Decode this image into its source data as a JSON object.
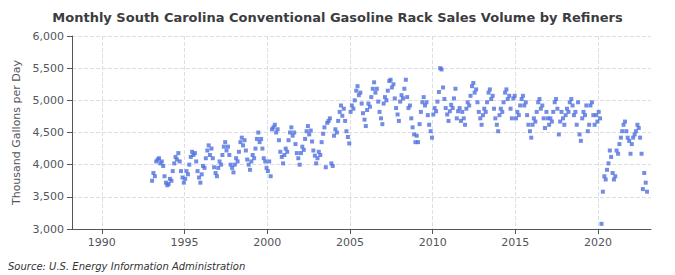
{
  "chart_data": {
    "type": "scatter",
    "title": "Monthly South Carolina Conventional Gasoline Rack Sales Volume by Refiners",
    "ylabel": "Thousand Gallons per Day",
    "annotations": [
      "Source: U.S. Energy Information Administration"
    ],
    "marker": "square",
    "grid": true,
    "xlim": [
      1988.2,
      2023.2
    ],
    "xticks": [
      1990,
      1995,
      2000,
      2005,
      2010,
      2015,
      2020
    ],
    "ylim": [
      3000,
      6000
    ],
    "yticks": [
      {
        "value": 3000,
        "label": "3,000"
      },
      {
        "value": 3500,
        "label": "3,500"
      },
      {
        "value": 4000,
        "label": "4,000"
      },
      {
        "value": 4500,
        "label": "4,500"
      },
      {
        "value": 5000,
        "label": "5,000"
      },
      {
        "value": 5500,
        "label": "5,500"
      },
      {
        "value": 6000,
        "label": "6,000"
      }
    ],
    "x": [
      1993.04,
      1993.12,
      1993.21,
      1993.29,
      1993.38,
      1993.46,
      1993.54,
      1993.63,
      1993.71,
      1993.79,
      1993.88,
      1993.96,
      1994.04,
      1994.12,
      1994.21,
      1994.29,
      1994.38,
      1994.46,
      1994.54,
      1994.63,
      1994.71,
      1994.79,
      1994.88,
      1994.96,
      1995.04,
      1995.12,
      1995.21,
      1995.29,
      1995.38,
      1995.46,
      1995.54,
      1995.63,
      1995.71,
      1995.79,
      1995.88,
      1995.96,
      1996.04,
      1996.12,
      1996.21,
      1996.29,
      1996.38,
      1996.46,
      1996.54,
      1996.63,
      1996.71,
      1996.79,
      1996.88,
      1996.96,
      1997.04,
      1997.12,
      1997.21,
      1997.29,
      1997.38,
      1997.46,
      1997.54,
      1997.63,
      1997.71,
      1997.79,
      1997.88,
      1997.96,
      1998.04,
      1998.12,
      1998.21,
      1998.29,
      1998.38,
      1998.46,
      1998.54,
      1998.63,
      1998.71,
      1998.79,
      1998.88,
      1998.96,
      1999.04,
      1999.12,
      1999.21,
      1999.29,
      1999.38,
      1999.46,
      1999.54,
      1999.63,
      1999.71,
      1999.79,
      1999.88,
      1999.96,
      2000.04,
      2000.12,
      2000.21,
      2000.29,
      2000.38,
      2000.46,
      2000.54,
      2000.63,
      2000.71,
      2000.79,
      2000.88,
      2000.96,
      2001.04,
      2001.12,
      2001.21,
      2001.29,
      2001.38,
      2001.46,
      2001.54,
      2001.63,
      2001.71,
      2001.79,
      2001.88,
      2001.96,
      2002.04,
      2002.12,
      2002.21,
      2002.29,
      2002.38,
      2002.46,
      2002.54,
      2002.63,
      2002.71,
      2002.79,
      2002.88,
      2002.96,
      2003.04,
      2003.12,
      2003.21,
      2003.29,
      2003.38,
      2003.46,
      2003.54,
      2003.63,
      2003.71,
      2003.79,
      2003.88,
      2003.96,
      2004.04,
      2004.12,
      2004.21,
      2004.29,
      2004.38,
      2004.46,
      2004.54,
      2004.63,
      2004.71,
      2004.79,
      2004.88,
      2004.96,
      2005.04,
      2005.12,
      2005.21,
      2005.29,
      2005.38,
      2005.46,
      2005.54,
      2005.63,
      2005.71,
      2005.79,
      2005.88,
      2005.96,
      2006.04,
      2006.12,
      2006.21,
      2006.29,
      2006.38,
      2006.46,
      2006.54,
      2006.63,
      2006.71,
      2006.79,
      2006.88,
      2006.96,
      2007.04,
      2007.12,
      2007.21,
      2007.29,
      2007.38,
      2007.46,
      2007.54,
      2007.63,
      2007.71,
      2007.79,
      2007.88,
      2007.96,
      2008.04,
      2008.12,
      2008.21,
      2008.29,
      2008.38,
      2008.46,
      2008.54,
      2008.63,
      2008.71,
      2008.79,
      2008.88,
      2008.96,
      2009.04,
      2009.12,
      2009.21,
      2009.29,
      2009.38,
      2009.46,
      2009.54,
      2009.63,
      2009.71,
      2009.79,
      2009.88,
      2009.96,
      2010.04,
      2010.12,
      2010.21,
      2010.29,
      2010.38,
      2010.46,
      2010.54,
      2010.63,
      2010.71,
      2010.79,
      2010.88,
      2010.96,
      2011.04,
      2011.12,
      2011.21,
      2011.29,
      2011.38,
      2011.46,
      2011.54,
      2011.63,
      2011.71,
      2011.79,
      2011.88,
      2011.96,
      2012.04,
      2012.12,
      2012.21,
      2012.29,
      2012.38,
      2012.46,
      2012.54,
      2012.63,
      2012.71,
      2012.79,
      2012.88,
      2012.96,
      2013.04,
      2013.12,
      2013.21,
      2013.29,
      2013.38,
      2013.46,
      2013.54,
      2013.63,
      2013.71,
      2013.79,
      2013.88,
      2013.96,
      2014.04,
      2014.12,
      2014.21,
      2014.29,
      2014.38,
      2014.46,
      2014.54,
      2014.63,
      2014.71,
      2014.79,
      2014.88,
      2014.96,
      2015.04,
      2015.12,
      2015.21,
      2015.29,
      2015.38,
      2015.46,
      2015.54,
      2015.63,
      2015.71,
      2015.79,
      2015.88,
      2015.96,
      2016.04,
      2016.12,
      2016.21,
      2016.29,
      2016.38,
      2016.46,
      2016.54,
      2016.63,
      2016.71,
      2016.79,
      2016.88,
      2016.96,
      2017.04,
      2017.12,
      2017.21,
      2017.29,
      2017.38,
      2017.46,
      2017.54,
      2017.63,
      2017.71,
      2017.79,
      2017.88,
      2017.96,
      2018.04,
      2018.12,
      2018.21,
      2018.29,
      2018.38,
      2018.46,
      2018.54,
      2018.63,
      2018.71,
      2018.79,
      2018.88,
      2018.96,
      2019.04,
      2019.12,
      2019.21,
      2019.29,
      2019.38,
      2019.46,
      2019.54,
      2019.63,
      2019.71,
      2019.79,
      2019.88,
      2019.96,
      2020.04,
      2020.12,
      2020.21,
      2020.29,
      2020.38,
      2020.46,
      2020.54,
      2020.63,
      2020.71,
      2020.79,
      2020.88,
      2020.96,
      2021.04,
      2021.12,
      2021.21,
      2021.29,
      2021.38,
      2021.46,
      2021.54,
      2021.63,
      2021.71,
      2021.79,
      2021.88,
      2021.96,
      2022.04,
      2022.12,
      2022.21,
      2022.29,
      2022.38,
      2022.46,
      2022.54,
      2022.63,
      2022.71,
      2022.79,
      2022.88,
      2022.96
    ],
    "values": [
      3750,
      3870,
      3820,
      4050,
      4080,
      4100,
      4020,
      4050,
      3980,
      3820,
      3720,
      3680,
      3700,
      3780,
      3750,
      3900,
      4020,
      4120,
      4080,
      4180,
      4050,
      3900,
      3800,
      3720,
      3780,
      3900,
      3850,
      4000,
      4120,
      4200,
      4150,
      4180,
      4050,
      3900,
      3800,
      3720,
      3850,
      3980,
      3950,
      4100,
      4220,
      4300,
      4150,
      4250,
      4100,
      3960,
      3870,
      3820,
      3950,
      4050,
      4000,
      4150,
      4280,
      4350,
      4220,
      4280,
      4150,
      4000,
      3950,
      3880,
      4000,
      4100,
      4050,
      4200,
      4350,
      4420,
      4300,
      4380,
      4220,
      4080,
      4000,
      3920,
      4050,
      4150,
      4100,
      4250,
      4400,
      4500,
      4350,
      4400,
      4250,
      4100,
      4050,
      3950,
      3900,
      4050,
      3820,
      4550,
      4580,
      4620,
      4500,
      4550,
      4380,
      4200,
      4120,
      4020,
      4150,
      4250,
      4200,
      4380,
      4500,
      4580,
      4450,
      4500,
      4320,
      4180,
      4100,
      4000,
      4180,
      4280,
      4230,
      4400,
      4520,
      4600,
      4470,
      4530,
      4360,
      4220,
      4140,
      4020,
      4100,
      4200,
      4150,
      4350,
      4480,
      4580,
      3960,
      4650,
      4680,
      4720,
      4020,
      3980,
      4450,
      4550,
      4500,
      4680,
      4820,
      4920,
      4760,
      4870,
      4680,
      4520,
      4430,
      4330,
      4820,
      4920,
      4870,
      5000,
      5150,
      5220,
      5080,
      5120,
      4950,
      4800,
      4700,
      4600,
      4850,
      4950,
      4900,
      5050,
      5180,
      5280,
      5120,
      5180,
      4980,
      4820,
      4720,
      4630,
      4950,
      5050,
      5000,
      5150,
      5300,
      5320,
      5200,
      5250,
      5030,
      4880,
      4780,
      4680,
      4980,
      5080,
      5030,
      5180,
      5320,
      5050,
      4880,
      4920,
      4720,
      4580,
      4470,
      4350,
      4450,
      4350,
      4630,
      4820,
      4970,
      5050,
      4920,
      4970,
      4770,
      4620,
      4520,
      4420,
      4780,
      4880,
      4830,
      4980,
      5130,
      5500,
      5480,
      5200,
      5020,
      4880,
      4780,
      4680,
      4830,
      4930,
      4880,
      5030,
      5180,
      4720,
      4830,
      4880,
      4680,
      4820,
      4720,
      4620,
      4870,
      4970,
      4920,
      5070,
      5220,
      5270,
      5120,
      5170,
      4970,
      4820,
      4720,
      4620,
      4770,
      4870,
      4820,
      4970,
      5120,
      5170,
      5020,
      5070,
      4870,
      4720,
      4620,
      4520,
      4770,
      4870,
      4820,
      4970,
      5120,
      5170,
      5020,
      5070,
      4870,
      4720,
      5030,
      5070,
      4720,
      4820,
      4770,
      4920,
      5020,
      5070,
      4920,
      4970,
      4770,
      4620,
      4520,
      4420,
      4620,
      4720,
      4670,
      4820,
      4970,
      5020,
      4870,
      4920,
      4720,
      4570,
      4820,
      4720,
      4620,
      4720,
      4670,
      4820,
      4970,
      5020,
      4870,
      4470,
      4670,
      4820,
      4720,
      4620,
      4770,
      4870,
      4820,
      4970,
      5020,
      4920,
      4770,
      4820,
      4620,
      4970,
      4470,
      4370,
      4720,
      4820,
      4770,
      4920,
      4520,
      4620,
      4920,
      4970,
      4770,
      4620,
      4770,
      4670,
      4820,
      4720,
      3080,
      3580,
      3820,
      3770,
      3920,
      4020,
      4220,
      4120,
      3870,
      3770,
      3820,
      4220,
      4170,
      4320,
      4420,
      4520,
      4620,
      4670,
      4520,
      4420,
      4370,
      4170,
      4320,
      4420,
      4470,
      4520,
      4620,
      4570,
      4420,
      4170,
      3620,
      3870,
      3720,
      3580
    ]
  }
}
